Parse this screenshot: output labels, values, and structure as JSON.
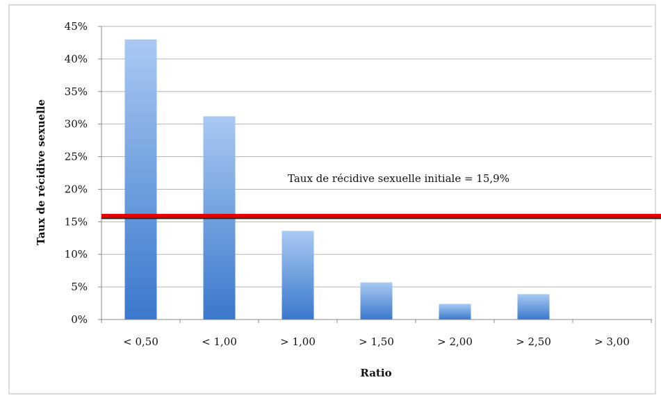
{
  "chart_data": {
    "type": "bar",
    "categories": [
      "< 0,50",
      "< 1,00",
      "> 1,00",
      "> 1,50",
      "> 2,00",
      "> 2,50",
      "> 3,00"
    ],
    "values": [
      43.0,
      31.2,
      13.6,
      5.7,
      2.4,
      3.9,
      0
    ],
    "xlabel": "Ratio",
    "ylabel": "Taux de récidive sexuelle",
    "ylim": [
      0,
      45
    ],
    "yticks": [
      0,
      5,
      10,
      15,
      20,
      25,
      30,
      35,
      40,
      45
    ],
    "ytick_labels": [
      "0%",
      "5%",
      "10%",
      "15%",
      "20%",
      "25%",
      "30%",
      "35%",
      "40%",
      "45%"
    ],
    "grid": true,
    "legend": "none",
    "reference_line": {
      "value": 15.9,
      "label": "Taux de récidive sexuelle initiale = 15,9%",
      "color": "#e00000"
    },
    "colors": {
      "bar_top": "#a9c9f2",
      "bar_bottom": "#3a78cc",
      "grid": "#b5b5b5",
      "frame": "#cfcfcf"
    }
  }
}
